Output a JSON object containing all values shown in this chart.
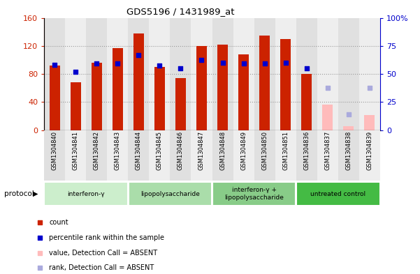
{
  "title": "GDS5196 / 1431989_at",
  "samples": [
    "GSM1304840",
    "GSM1304841",
    "GSM1304842",
    "GSM1304843",
    "GSM1304844",
    "GSM1304845",
    "GSM1304846",
    "GSM1304847",
    "GSM1304848",
    "GSM1304849",
    "GSM1304850",
    "GSM1304851",
    "GSM1304836",
    "GSM1304837",
    "GSM1304838",
    "GSM1304839"
  ],
  "count_present": [
    92,
    68,
    96,
    117,
    138,
    90,
    74,
    120,
    122,
    108,
    135,
    130,
    80,
    null,
    null,
    null
  ],
  "count_absent": [
    null,
    null,
    null,
    null,
    null,
    null,
    null,
    null,
    null,
    null,
    null,
    null,
    null,
    36,
    6,
    22
  ],
  "rank_present": [
    58.1,
    51.9,
    59.4,
    59.4,
    66.9,
    57.5,
    55.0,
    62.5,
    60.0,
    59.4,
    59.4,
    60.0,
    55.0,
    null,
    null,
    null
  ],
  "rank_absent_light": [
    null,
    null,
    null,
    null,
    null,
    null,
    null,
    null,
    null,
    null,
    null,
    null,
    null,
    37.5,
    13.8,
    37.5
  ],
  "ylim_left": [
    0,
    160
  ],
  "ylim_right": [
    0,
    100
  ],
  "yticks_left": [
    0,
    40,
    80,
    120,
    160
  ],
  "yticks_right": [
    0,
    25,
    50,
    75,
    100
  ],
  "groups": [
    {
      "label": "interferon-γ",
      "start": 0,
      "end": 4,
      "color": "#cceecc"
    },
    {
      "label": "lipopolysaccharide",
      "start": 4,
      "end": 8,
      "color": "#aaddaa"
    },
    {
      "label": "interferon-γ +\nlipopolysaccharide",
      "start": 8,
      "end": 12,
      "color": "#88cc88"
    },
    {
      "label": "untreated control",
      "start": 12,
      "end": 16,
      "color": "#44bb44"
    }
  ],
  "bar_color_red": "#cc2200",
  "bar_color_pink": "#ffbbbb",
  "marker_color_blue": "#0000cc",
  "marker_color_lightblue": "#aaaadd",
  "col_bg_even": "#e0e0e0",
  "col_bg_odd": "#eeeeee",
  "xtick_bg": "#d8d8d8",
  "legend_items": [
    {
      "label": "count",
      "color": "#cc2200"
    },
    {
      "label": "percentile rank within the sample",
      "color": "#0000cc"
    },
    {
      "label": "value, Detection Call = ABSENT",
      "color": "#ffbbbb"
    },
    {
      "label": "rank, Detection Call = ABSENT",
      "color": "#aaaadd"
    }
  ]
}
